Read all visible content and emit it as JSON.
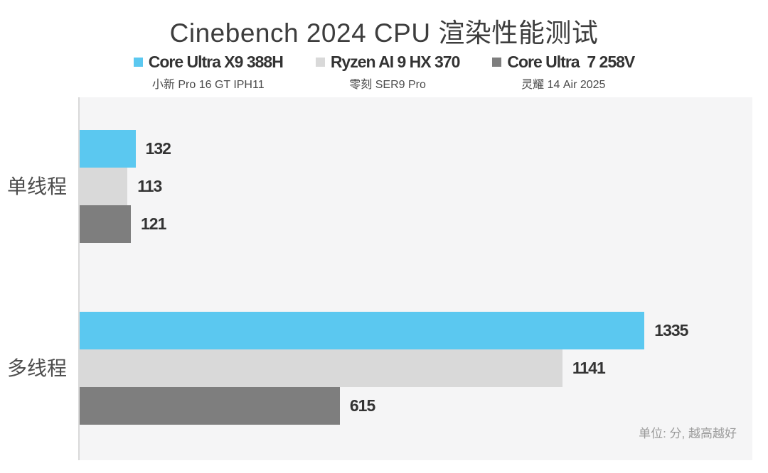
{
  "title": "Cinebench 2024 CPU 渲染性能测试",
  "legend": [
    {
      "label": "Core Ultra X9 388H",
      "device": "小新 Pro 16 GT IPH11",
      "color": "#5bc8f0"
    },
    {
      "label": "Ryzen AI 9 HX 370",
      "device": "零刻 SER9 Pro",
      "color": "#d9d9d9"
    },
    {
      "label": "Core Ultra  7 258V",
      "device": "灵耀 14 Air 2025",
      "color": "#7e7e7e"
    }
  ],
  "categories": {
    "single": "单线程",
    "multi": "多线程"
  },
  "footnote": "单位: 分, 越高越好",
  "colors": {
    "plot_background": "#f5f5f6",
    "axis_line": "#d9d9d9",
    "accent_cyan": "#5bc8f0",
    "light_gray": "#d9d9d9",
    "dark_gray": "#7e7e7e"
  },
  "chart_data": {
    "type": "bar",
    "orientation": "horizontal",
    "title": "Cinebench 2024 CPU 渲染性能测试",
    "categories": [
      "单线程",
      "多线程"
    ],
    "series": [
      {
        "name": "Core Ultra X9 388H",
        "device": "小新 Pro 16 GT IPH11",
        "color": "#5bc8f0",
        "values": [
          132,
          1335
        ]
      },
      {
        "name": "Ryzen AI 9 HX 370",
        "device": "零刻 SER9 Pro",
        "color": "#d9d9d9",
        "values": [
          113,
          1141
        ]
      },
      {
        "name": "Core Ultra  7 258V",
        "device": "灵耀 14 Air 2025",
        "color": "#7e7e7e",
        "values": [
          121,
          615
        ]
      }
    ],
    "xlim": [
      0,
      1590
    ],
    "grid": false,
    "legend_position": "top",
    "value_labels": "outside-end",
    "note": "单位: 分, 越高越好"
  }
}
